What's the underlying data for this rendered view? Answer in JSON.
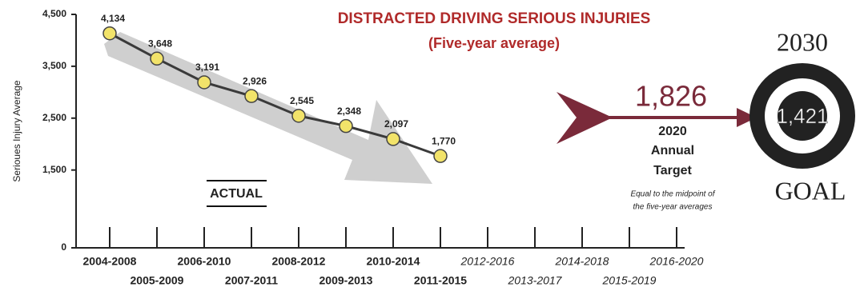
{
  "chart_data": {
    "type": "line",
    "title": "DISTRACTED DRIVING SERIOUS INJURIES",
    "subtitle": "(Five-year average)",
    "y_label": "Serioues Injury Average",
    "categories": [
      "2004-2008",
      "2005-2009",
      "2006-2010",
      "2007-2011",
      "2008-2012",
      "2009-2013",
      "2010-2014",
      "2011-2015",
      "2012-2016",
      "2013-2017",
      "2014-2018",
      "2015-2019",
      "2016-2020"
    ],
    "values": [
      4134,
      3648,
      3191,
      2926,
      2545,
      2348,
      2097,
      1770,
      null,
      null,
      null,
      null,
      null
    ],
    "value_labels": [
      "4,134",
      "3,648",
      "3,191",
      "2,926",
      "2,545",
      "2,348",
      "2,097",
      "1,770",
      null,
      null,
      null,
      null,
      null
    ],
    "color": "#f2e36a",
    "line_color": "#3a3a3a",
    "ylim": [
      0,
      4500
    ],
    "yticks": [
      0,
      {
        "value": 1500,
        "label": "1,500"
      },
      {
        "value": 2500,
        "label": "2,500"
      },
      {
        "value": 3500,
        "label": "3,500"
      },
      {
        "value": 4500,
        "label": "4,500"
      }
    ],
    "actual_label": "ACTUAL",
    "target": {
      "value": 1826,
      "label": "1,826"
    },
    "target_text": [
      "2020",
      "Annual",
      "Target"
    ],
    "target_note": [
      "Equal to the midpoint of",
      "the five-year averages"
    ],
    "goal_year": "2030",
    "goal": {
      "value": 1421,
      "label": "1,421"
    },
    "goal_text": "GOAL"
  }
}
